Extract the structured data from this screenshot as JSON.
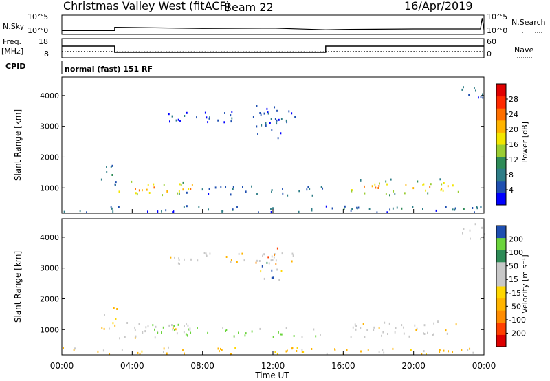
{
  "header": {
    "site": "Christmas Valley West (fitACF)",
    "beam": "Beam 22",
    "date": "16/Apr/2019"
  },
  "chart_data": [
    {
      "type": "line",
      "panel": "noise",
      "left_label": "N.Sky",
      "right_label": "N.Search",
      "left_ticks": [
        "10^5",
        "10^0"
      ],
      "right_ticks": [
        "10^5",
        "10^0"
      ],
      "x": [
        0,
        3,
        3,
        8,
        12,
        15,
        16,
        20,
        23.8,
        23.9,
        24
      ],
      "y": [
        0.15,
        0.15,
        0.35,
        0.28,
        0.3,
        0.2,
        0.22,
        0.25,
        0.25,
        0.9,
        0.2
      ]
    },
    {
      "type": "line",
      "panel": "frequency",
      "left_label": "Freq.",
      "left_unit": "[MHz]",
      "right_label": "Nave",
      "left_ticks": [
        "18",
        "8"
      ],
      "right_ticks": [
        "60",
        "0"
      ],
      "freq_x": [
        0,
        3,
        3,
        15,
        15,
        24
      ],
      "freq_y": [
        14.5,
        14.5,
        10,
        10,
        14.5,
        14.5
      ],
      "nave_x": [
        0,
        3,
        3,
        15,
        15,
        24
      ],
      "nave_y": [
        15,
        15,
        14,
        14,
        15,
        15
      ]
    },
    {
      "type": "table",
      "panel": "cpid",
      "left_label": "CPID",
      "text": "normal (fast) 151 RF"
    },
    {
      "type": "heatmap",
      "panel": "power",
      "ylabel": "Slant Range [km]",
      "y_ticks": [
        "4000",
        "3000",
        "2000",
        "1000"
      ],
      "y_tick_values": [
        4000,
        3000,
        2000,
        1000
      ],
      "ylim": [
        180,
        4600
      ],
      "xlim": [
        0,
        24
      ],
      "colorbar": {
        "label": "Power [dB]",
        "ticks": [
          "28",
          "24",
          "20",
          "16",
          "12",
          "8",
          "4"
        ],
        "colors": [
          "#0000ff",
          "#1f4fb0",
          "#2e7d87",
          "#2e8b57",
          "#9acd32",
          "#f3e600",
          "#ffb400",
          "#ff7000",
          "#ff2a00",
          "#e00000"
        ]
      },
      "regions": [
        {
          "t0": 3.2,
          "t1": 7.4,
          "r0": 720,
          "r1": 1260,
          "core": 22
        },
        {
          "t0": 16.4,
          "t1": 22.8,
          "r0": 760,
          "r1": 1280,
          "core": 20
        },
        {
          "t0": 0.0,
          "t1": 24.0,
          "r0": 200,
          "r1": 420,
          "core": 6
        },
        {
          "t0": 6.0,
          "t1": 13.5,
          "r0": 3100,
          "r1": 3500,
          "core": 4
        },
        {
          "t0": 11.0,
          "t1": 12.5,
          "r0": 2600,
          "r1": 3700,
          "core": 6
        },
        {
          "t0": 2.2,
          "t1": 3.2,
          "r0": 1000,
          "r1": 1850,
          "core": 8
        },
        {
          "t0": 7.0,
          "t1": 14.8,
          "r0": 750,
          "r1": 1050,
          "core": 6
        },
        {
          "t0": 22.6,
          "t1": 24.0,
          "r0": 3900,
          "r1": 4450,
          "core": 6
        }
      ]
    },
    {
      "type": "heatmap",
      "panel": "velocity",
      "ylabel": "Slant Range [km]",
      "xlabel": "Time UT",
      "x_ticks": [
        "00:00",
        "04:00",
        "08:00",
        "12:00",
        "16:00",
        "20:00",
        "00:00"
      ],
      "y_ticks": [
        "4000",
        "3000",
        "2000",
        "1000"
      ],
      "y_tick_values": [
        4000,
        3000,
        2000,
        1000
      ],
      "ylim": [
        180,
        4600
      ],
      "xlim": [
        0,
        24
      ],
      "colorbar": {
        "label": "Velocity [m s⁻¹]",
        "ticks": [
          "200",
          "100",
          "50",
          "15",
          "-15",
          "-50",
          "-100",
          "-200"
        ],
        "colors": [
          "#dd0000",
          "#ff4000",
          "#ff8c00",
          "#ffb400",
          "#ffd700",
          "#c8c8c8",
          "#c8c8c8",
          "#2e8b57",
          "#6bd43c",
          "#1f4fb0"
        ]
      },
      "regions": [
        {
          "t0": 3.2,
          "t1": 7.4,
          "r0": 720,
          "r1": 1260,
          "kind": "gray"
        },
        {
          "t0": 5.0,
          "t1": 7.3,
          "r0": 780,
          "r1": 1200,
          "kind": "green"
        },
        {
          "t0": 16.4,
          "t1": 22.8,
          "r0": 760,
          "r1": 1280,
          "kind": "gray"
        },
        {
          "t0": 0.0,
          "t1": 24.0,
          "r0": 200,
          "r1": 420,
          "kind": "orange"
        },
        {
          "t0": 6.0,
          "t1": 13.5,
          "r0": 3100,
          "r1": 3500,
          "kind": "gray"
        },
        {
          "t0": 11.0,
          "t1": 12.5,
          "r0": 2600,
          "r1": 3700,
          "kind": "mixed"
        },
        {
          "t0": 2.2,
          "t1": 3.2,
          "r0": 1000,
          "r1": 1850,
          "kind": "orange"
        },
        {
          "t0": 7.0,
          "t1": 14.8,
          "r0": 750,
          "r1": 1050,
          "kind": "green"
        },
        {
          "t0": 22.6,
          "t1": 24.0,
          "r0": 3900,
          "r1": 4450,
          "kind": "gray"
        }
      ]
    }
  ]
}
